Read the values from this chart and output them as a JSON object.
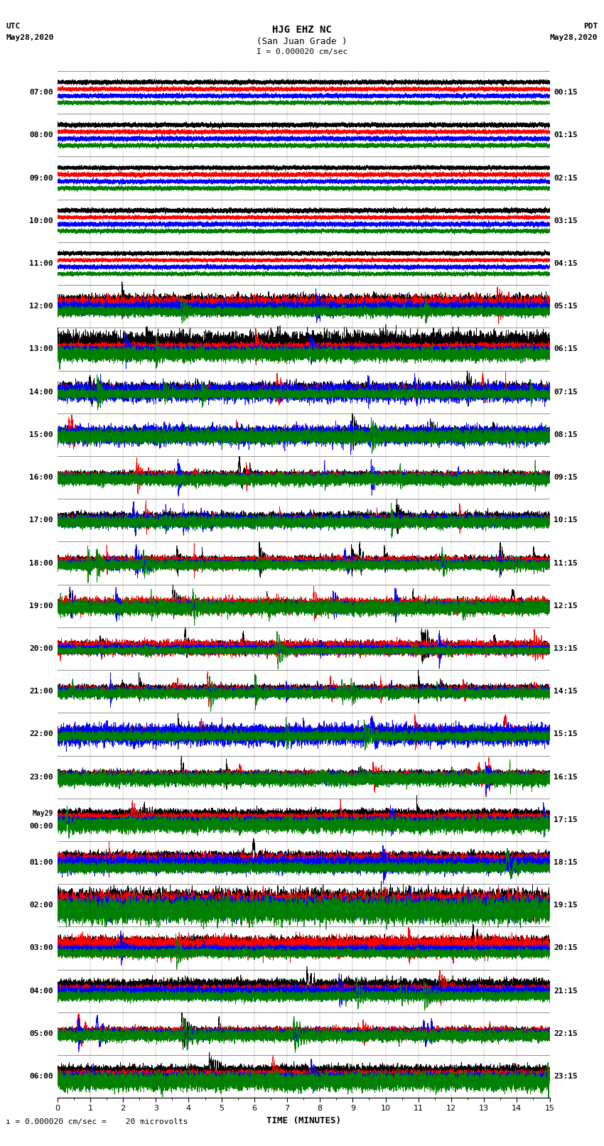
{
  "title_line1": "HJG EHZ NC",
  "title_line2": "(San Juan Grade )",
  "title_line3": "I = 0.000020 cm/sec",
  "left_header_line1": "UTC",
  "left_header_line2": "May28,2020",
  "right_header_line1": "PDT",
  "right_header_line2": "May28,2020",
  "xlabel": "TIME (MINUTES)",
  "footnote": "= 0.000020 cm/sec =    20 microvolts",
  "utc_times": [
    "07:00",
    "08:00",
    "09:00",
    "10:00",
    "11:00",
    "12:00",
    "13:00",
    "14:00",
    "15:00",
    "16:00",
    "17:00",
    "18:00",
    "19:00",
    "20:00",
    "21:00",
    "22:00",
    "23:00",
    "May29\n00:00",
    "01:00",
    "02:00",
    "03:00",
    "04:00",
    "05:00",
    "06:00"
  ],
  "pdt_times": [
    "00:15",
    "01:15",
    "02:15",
    "03:15",
    "04:15",
    "05:15",
    "06:15",
    "07:15",
    "08:15",
    "09:15",
    "10:15",
    "11:15",
    "12:15",
    "13:15",
    "14:15",
    "15:15",
    "16:15",
    "17:15",
    "18:15",
    "19:15",
    "20:15",
    "21:15",
    "22:15",
    "23:15"
  ],
  "n_traces": 24,
  "trace_minutes": 15,
  "sample_rate": 100,
  "background": "#ffffff",
  "colors": [
    "black",
    "red",
    "blue",
    "green"
  ],
  "n_channels": 4,
  "fig_width": 8.5,
  "fig_height": 16.13,
  "amplitude_profiles": [
    0.08,
    0.08,
    0.06,
    0.05,
    0.05,
    0.6,
    0.9,
    1.1,
    1.3,
    1.5,
    1.8,
    1.8,
    1.5,
    1.6,
    1.8,
    1.1,
    1.3,
    0.6,
    0.35,
    0.28,
    0.45,
    0.9,
    1.1,
    0.9
  ],
  "channel_offsets": [
    0.3,
    0.1,
    -0.1,
    -0.3
  ]
}
